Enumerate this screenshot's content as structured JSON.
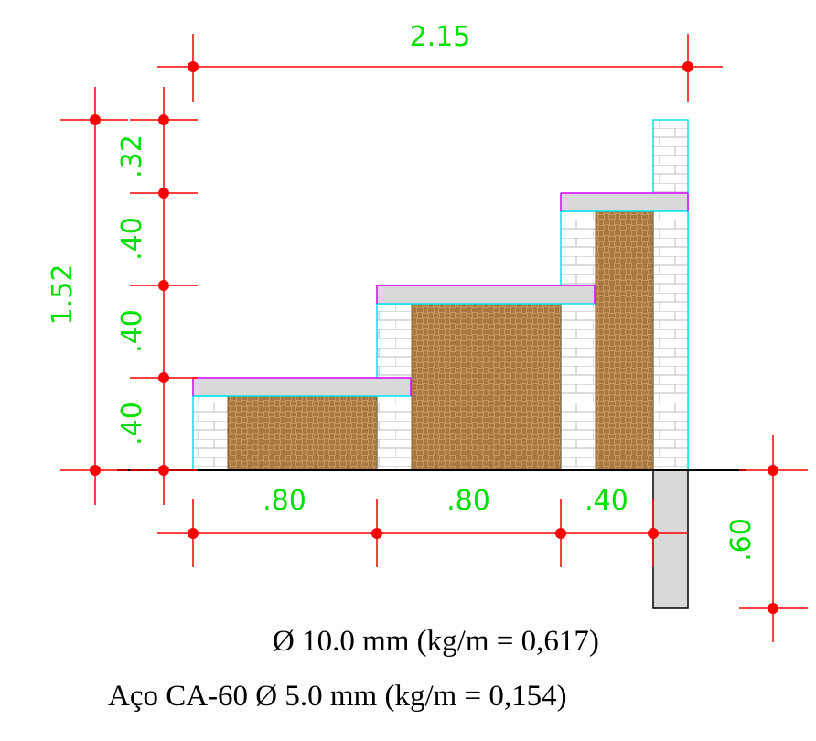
{
  "dimensions": {
    "total_width": "2.15",
    "total_height": "1.52",
    "step_heights": [
      ".40",
      ".40",
      ".40",
      ".32"
    ],
    "step_widths": [
      ".80",
      ".80",
      ".40"
    ],
    "footing_depth": ".60"
  },
  "notes": {
    "bar_10": "Ø 10.0 mm (kg/m = 0,617)",
    "bar_5": "Aço CA-60 Ø 5.0 mm (kg/m = 0,154)"
  },
  "colors": {
    "dimension_line": "#ff0000",
    "dimension_text": "#00e000",
    "brick_outline": "#00e5ee",
    "slab_outline": "#ff00ff",
    "slab_fill": "#d9d9d9",
    "fill_soil": "#c8955a"
  }
}
